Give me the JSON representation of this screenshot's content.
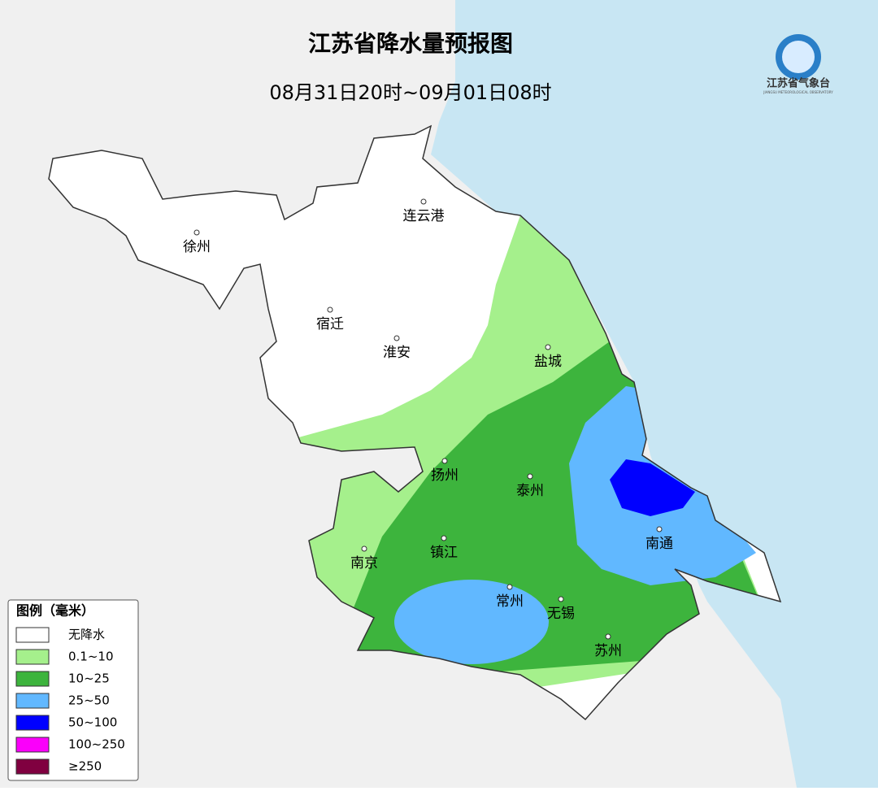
{
  "header": {
    "title": "江苏省降水量预报图",
    "subtitle": "08月31日20时~09月01日08时"
  },
  "logo": {
    "name": "江苏省气象台",
    "english": "JIANGSU METEOROLOGICAL OBSERVATORY"
  },
  "cities": [
    "连云港",
    "徐州",
    "宿迁",
    "淮安",
    "盐城",
    "扬州",
    "泰州",
    "南京",
    "镇江",
    "南通",
    "常州",
    "无锡",
    "苏州"
  ],
  "legend": {
    "title": "图例（毫米）",
    "items": [
      {
        "label": "无降水",
        "color": "#ffffff"
      },
      {
        "label": "0.1~10",
        "color": "#a5f08c"
      },
      {
        "label": "10~25",
        "color": "#3db43d"
      },
      {
        "label": "25~50",
        "color": "#61b8ff"
      },
      {
        "label": "50~100",
        "color": "#0000ff"
      },
      {
        "label": "100~250",
        "color": "#fa00fa"
      },
      {
        "label": "≥250",
        "color": "#800040"
      }
    ]
  }
}
